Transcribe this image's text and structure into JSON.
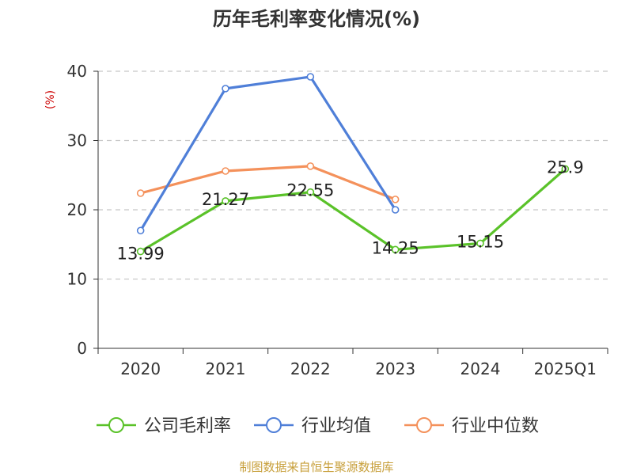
{
  "chart_data": {
    "type": "line",
    "title": "历年毛利率变化情况(%)",
    "ylabel": "(%)",
    "categories": [
      "2020",
      "2021",
      "2022",
      "2023",
      "2024",
      "2025Q1"
    ],
    "ylim": [
      0,
      40
    ],
    "yticks": [
      0,
      10,
      20,
      30,
      40
    ],
    "grid": true,
    "legend_position": "bottom",
    "series": [
      {
        "name": "公司毛利率",
        "color": "#5ac229",
        "values": [
          13.99,
          21.27,
          22.55,
          14.25,
          15.15,
          25.9
        ],
        "labels": [
          "13.99",
          "21.27",
          "22.55",
          "14.25",
          "15.15",
          "25.9"
        ]
      },
      {
        "name": "行业均值",
        "color": "#4f7fd8",
        "values": [
          17.0,
          37.5,
          39.2,
          20.0,
          null,
          null
        ]
      },
      {
        "name": "行业中位数",
        "color": "#f4915b",
        "values": [
          22.4,
          25.6,
          26.3,
          21.5,
          null,
          null
        ]
      }
    ],
    "source": "制图数据来自恒生聚源数据库"
  }
}
